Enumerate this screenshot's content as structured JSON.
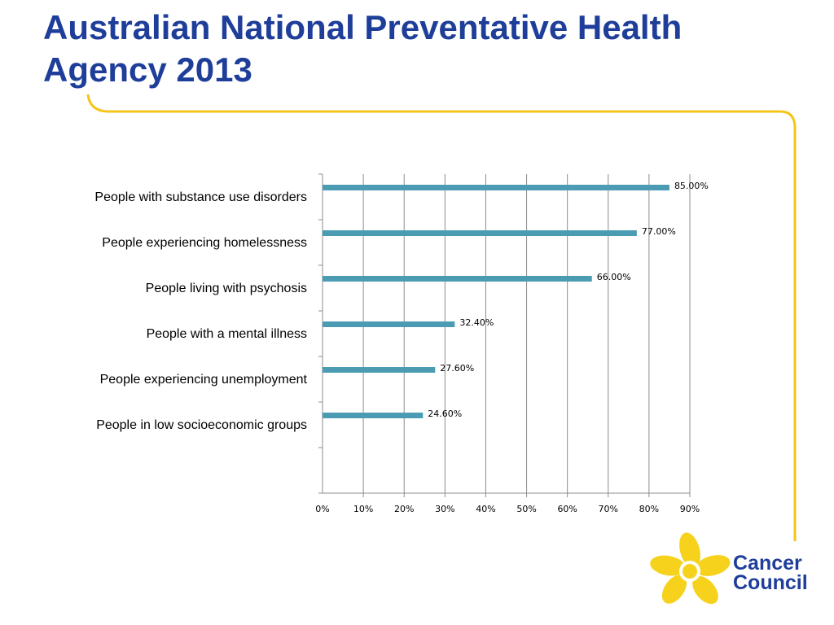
{
  "slide": {
    "title": "Australian National Preventative Health Agency 2013"
  },
  "colors": {
    "title": "#1f3e9a",
    "bar": "#4b9cb3",
    "accent_line": "#f6c41b",
    "logo_flower": "#f7d21c",
    "logo_text": "#1f3e9a"
  },
  "logo": {
    "line1": "Cancer",
    "line2": "Council",
    "icon": "daffodil-icon"
  },
  "chart_data": {
    "type": "bar",
    "orientation": "horizontal",
    "categories": [
      "People with substance use disorders",
      "People experiencing homelessness",
      "People living with psychosis",
      "People with a mental illness",
      "People experiencing unemployment",
      "People in low socioeconomic groups"
    ],
    "values": [
      85.0,
      77.0,
      66.0,
      32.4,
      27.6,
      24.6
    ],
    "data_labels": [
      "85.00%",
      "77.00%",
      "66.00%",
      "32.40%",
      "27.60%",
      "24.60%"
    ],
    "x_ticks": [
      "0%",
      "10%",
      "20%",
      "30%",
      "40%",
      "50%",
      "60%",
      "70%",
      "80%",
      "90%"
    ],
    "xlim": [
      0,
      90
    ],
    "grid": true,
    "legend": "none",
    "title": "",
    "xlabel": "",
    "ylabel": ""
  }
}
